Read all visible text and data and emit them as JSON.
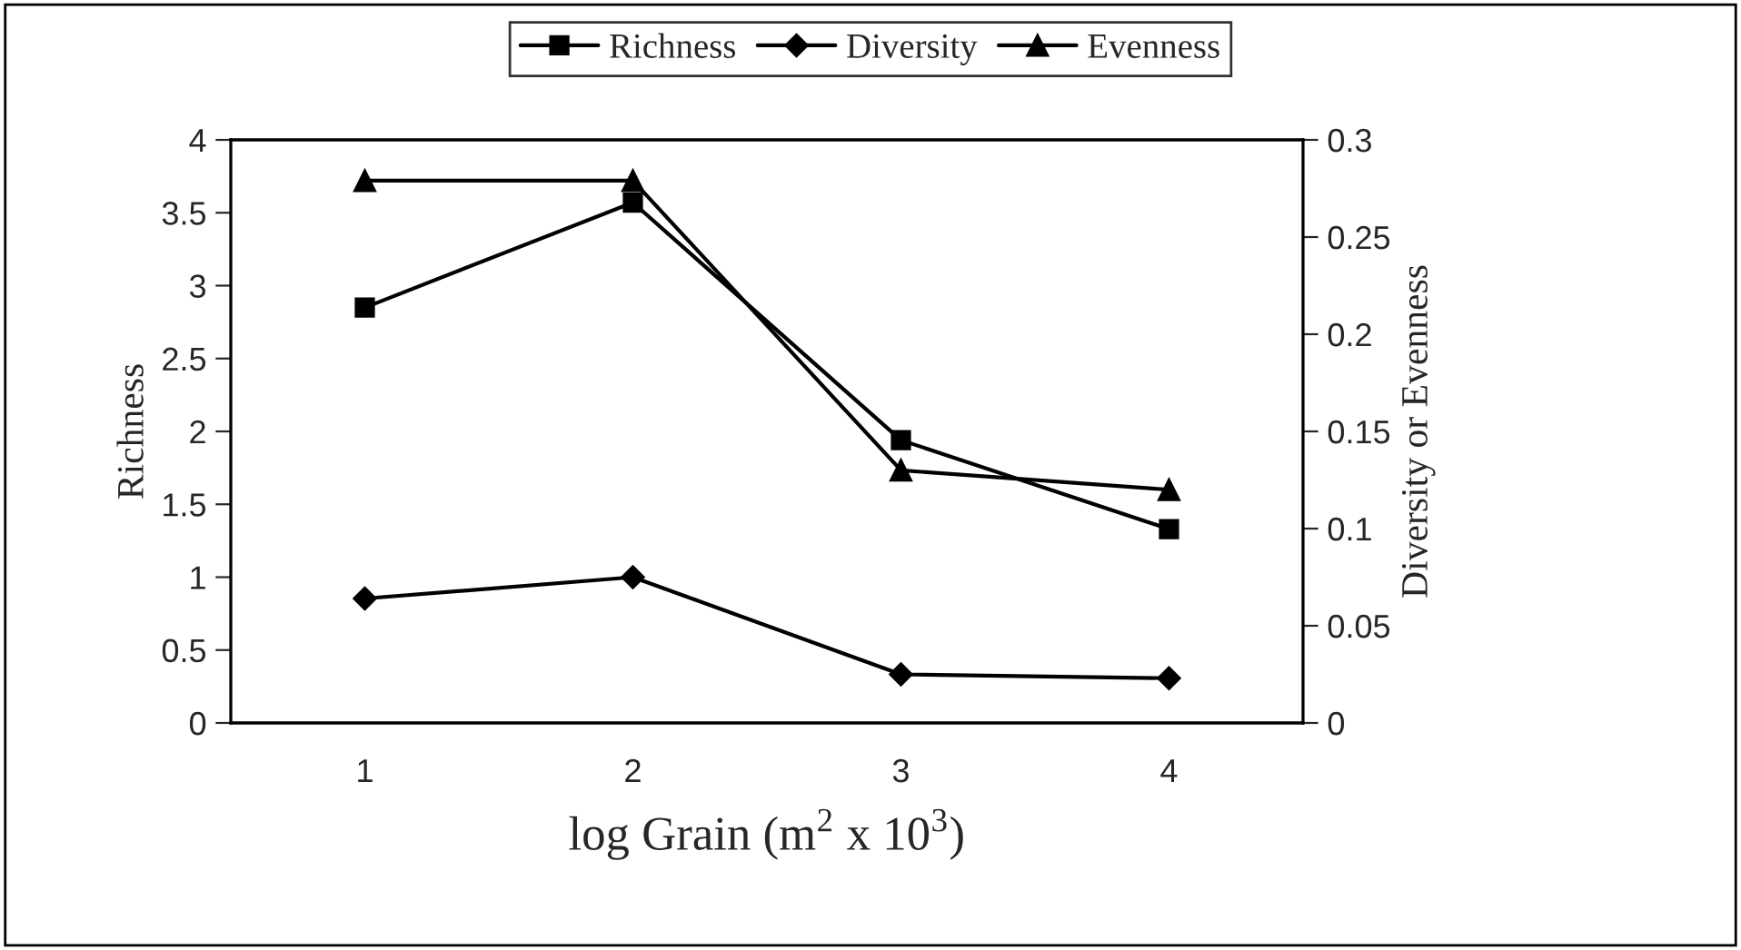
{
  "chart_data": {
    "type": "line",
    "xlabel": "log Grain (m$^{2}$ x 10$^{3}$)",
    "ylabel": "Richness",
    "y2label": "Diversity or Evenness",
    "categories": [
      "1",
      "2",
      "3",
      "4"
    ],
    "series": [
      {
        "name": "Richness",
        "color": "#000000",
        "marker": "square",
        "values": [
          2.85,
          3.57,
          1.94,
          1.33
        ]
      },
      {
        "name": "Diversity",
        "color": "#000000",
        "marker": "diamond",
        "axis": "y2",
        "values": [
          0.064,
          0.075,
          0.025,
          0.023
        ]
      },
      {
        "name": "Evenness",
        "color": "#000000",
        "marker": "triangle",
        "axis": "y2",
        "values": [
          0.279,
          0.279,
          0.13,
          0.12
        ]
      }
    ],
    "ylim": [
      0,
      4
    ],
    "yticks": [
      0,
      0.5,
      1,
      1.5,
      2,
      2.5,
      3,
      3.5,
      4
    ],
    "y2lim": [
      0,
      0.3
    ],
    "y2ticks": [
      0,
      0.05,
      0.1,
      0.15,
      0.2,
      0.25,
      0.3
    ],
    "legend": "top",
    "grid": false,
    "line_style": "solid"
  }
}
